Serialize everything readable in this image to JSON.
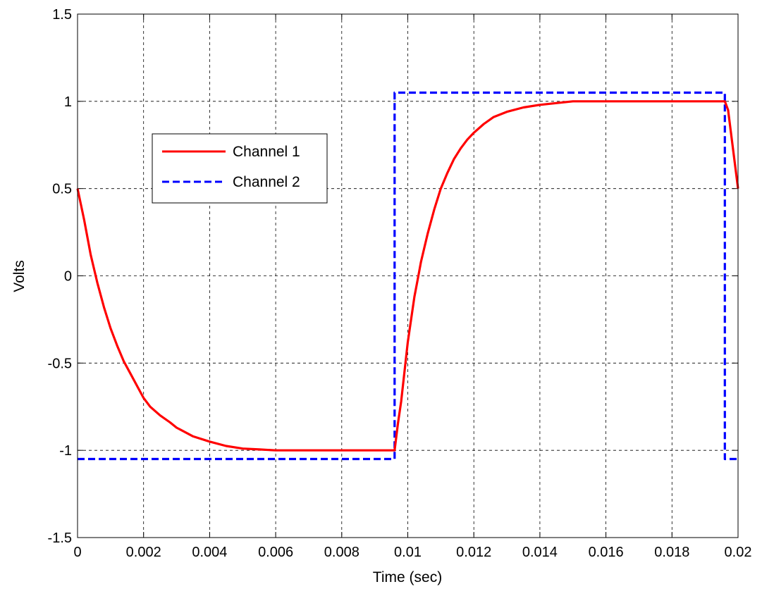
{
  "chart_data": {
    "type": "line",
    "title": "",
    "xlabel": "Time (sec)",
    "ylabel": "Volts",
    "xlim": [
      0,
      0.02
    ],
    "ylim": [
      -1.5,
      1.5
    ],
    "grid": true,
    "legend_position": "upper-left",
    "x_ticks": [
      0,
      0.002,
      0.004,
      0.006,
      0.008,
      0.01,
      0.012,
      0.014,
      0.016,
      0.018,
      0.02
    ],
    "x_tick_labels": [
      "0",
      "0.002",
      "0.004",
      "0.006",
      "0.008",
      "0.01",
      "0.012",
      "0.014",
      "0.016",
      "0.018",
      "0.02"
    ],
    "y_ticks": [
      -1.5,
      -1,
      -0.5,
      0,
      0.5,
      1,
      1.5
    ],
    "y_tick_labels": [
      "-1.5",
      "-1",
      "-0.5",
      "0",
      "0.5",
      "1",
      "1.5"
    ],
    "series": [
      {
        "name": "Channel 1",
        "color": "#ff0000",
        "style": "solid",
        "x": [
          0,
          0.0002,
          0.0004,
          0.0006,
          0.0008,
          0.001,
          0.0012,
          0.0014,
          0.0016,
          0.0018,
          0.002,
          0.0022,
          0.0025,
          0.0028,
          0.003,
          0.0035,
          0.004,
          0.0045,
          0.005,
          0.0055,
          0.006,
          0.007,
          0.008,
          0.0092,
          0.0096,
          0.0097,
          0.0098,
          0.0099,
          0.01,
          0.0101,
          0.0102,
          0.0103,
          0.0104,
          0.0105,
          0.0106,
          0.0108,
          0.011,
          0.0112,
          0.0114,
          0.0116,
          0.0118,
          0.012,
          0.0123,
          0.0126,
          0.013,
          0.0135,
          0.014,
          0.0145,
          0.015,
          0.016,
          0.017,
          0.018,
          0.019,
          0.0196,
          0.0197,
          0.0198,
          0.0199,
          0.02
        ],
        "y": [
          0.5,
          0.32,
          0.12,
          -0.04,
          -0.18,
          -0.3,
          -0.4,
          -0.49,
          -0.56,
          -0.63,
          -0.7,
          -0.75,
          -0.8,
          -0.84,
          -0.87,
          -0.92,
          -0.95,
          -0.975,
          -0.99,
          -0.995,
          -1.0,
          -1.0,
          -1.0,
          -1.0,
          -1.0,
          -0.85,
          -0.72,
          -0.55,
          -0.38,
          -0.25,
          -0.12,
          -0.02,
          0.08,
          0.16,
          0.24,
          0.38,
          0.5,
          0.59,
          0.67,
          0.73,
          0.78,
          0.82,
          0.87,
          0.91,
          0.94,
          0.965,
          0.98,
          0.99,
          1.0,
          1.0,
          1.0,
          1.0,
          1.0,
          1.0,
          0.95,
          0.8,
          0.65,
          0.5
        ]
      },
      {
        "name": "Channel 2",
        "color": "#0000ff",
        "style": "dashed",
        "x": [
          0,
          0.002,
          0.004,
          0.006,
          0.008,
          0.0096,
          0.0096,
          0.011,
          0.013,
          0.015,
          0.017,
          0.019,
          0.0196,
          0.0196,
          0.0198,
          0.02
        ],
        "y": [
          -1.05,
          -1.05,
          -1.05,
          -1.05,
          -1.05,
          -1.05,
          1.05,
          1.05,
          1.05,
          1.05,
          1.05,
          1.05,
          1.05,
          -1.05,
          -1.05,
          -1.05
        ]
      }
    ]
  }
}
